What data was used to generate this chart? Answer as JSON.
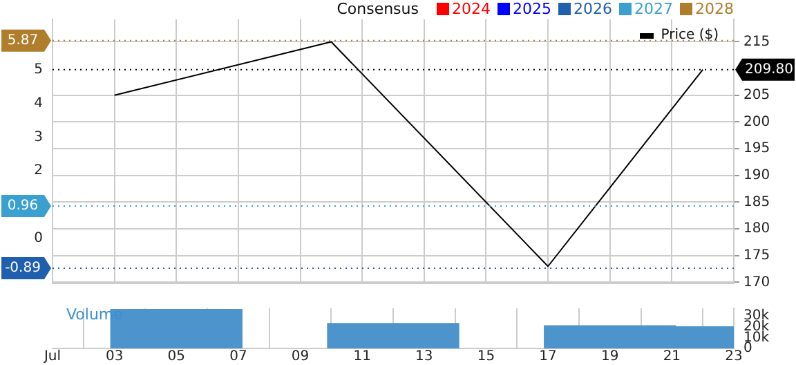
{
  "chart_data": [
    {
      "type": "line",
      "legend_title": "Consensus",
      "legend": "top",
      "grid": true,
      "tick_labels": "y",
      "x": [
        "--07-03",
        "--07-10",
        "--07-17",
        "--07-22"
      ],
      "xlim": [
        "--07-01",
        "--07-23"
      ],
      "xticks": [
        {
          "value": "--07-01",
          "label": null
        },
        {
          "value": "--07-03",
          "label": null
        },
        {
          "value": "--07-05",
          "label": null
        },
        {
          "value": "--07-07",
          "label": null
        },
        {
          "value": "--07-09",
          "label": null
        },
        {
          "value": "--07-11",
          "label": null
        },
        {
          "value": "--07-13",
          "label": null
        },
        {
          "value": "--07-15",
          "label": null
        },
        {
          "value": "--07-17",
          "label": null
        },
        {
          "value": "--07-19",
          "label": null
        },
        {
          "value": "--07-21",
          "label": null
        },
        {
          "value": "--07-23",
          "label": null
        }
      ],
      "ylim": [
        -1.34,
        6.5
      ],
      "yticks": [
        0,
        2,
        3,
        4,
        5
      ],
      "y2lim": [
        169.8,
        219.2
      ],
      "y2ticks": [
        170,
        175,
        180,
        185,
        190,
        195,
        200,
        205,
        215
      ],
      "series": [
        {
          "name": "2024",
          "color": "#ff0000",
          "values": [
            null,
            null,
            null,
            null
          ]
        },
        {
          "name": "2025",
          "color": "#0000ff",
          "values": [
            null,
            null,
            null,
            null
          ]
        },
        {
          "name": "2026",
          "color": "#1f5fae",
          "values": [
            null,
            null,
            null,
            null
          ]
        },
        {
          "name": "2027",
          "color": "#3aa0d0",
          "values": [
            null,
            null,
            null,
            null
          ]
        },
        {
          "name": "2028",
          "color": "#b07d2b",
          "values": [
            null,
            null,
            null,
            null
          ]
        },
        {
          "name": "Price ($)",
          "color": "#000000",
          "axis": "y2",
          "values": [
            205,
            215,
            173,
            209.8
          ]
        }
      ],
      "ref_lines": [
        {
          "axis": "y",
          "value": 5.87,
          "label": "5.87",
          "color": "#b07d2b",
          "line_style": "dotted"
        },
        {
          "axis": "y",
          "value": 0.96,
          "label": "0.96",
          "color": "#3aa0d0",
          "line_style": "dotted"
        },
        {
          "axis": "y",
          "value": -0.89,
          "label": "-0.89",
          "color": "#1f5fae",
          "line_style": "dotted"
        },
        {
          "axis": "y2",
          "value": 209.8,
          "label": "209.80",
          "color": "#000000",
          "line_style": "dotted"
        }
      ]
    },
    {
      "type": "bar",
      "title": "Volume",
      "grid": "x",
      "x": [
        "--07-05",
        "--07-12",
        "--07-19",
        "--07-23"
      ],
      "xlim": [
        "--07-01",
        "--07-23"
      ],
      "xticks": [
        {
          "value": "--07-01",
          "label": "Jul"
        },
        {
          "value": "--07-03",
          "label": "03"
        },
        {
          "value": "--07-05",
          "label": "05"
        },
        {
          "value": "--07-07",
          "label": "07"
        },
        {
          "value": "--07-09",
          "label": "09"
        },
        {
          "value": "--07-11",
          "label": "11"
        },
        {
          "value": "--07-13",
          "label": "13"
        },
        {
          "value": "--07-15",
          "label": "15"
        },
        {
          "value": "--07-17",
          "label": "17"
        },
        {
          "value": "--07-19",
          "label": "19"
        },
        {
          "value": "--07-21",
          "label": "21"
        },
        {
          "value": "--07-23",
          "label": "23"
        }
      ],
      "y2lim": [
        0,
        37000
      ],
      "y2ticks": [
        {
          "value": 0,
          "label": "0"
        },
        {
          "value": 10000,
          "label": "10k"
        },
        {
          "value": 20000,
          "label": "20k"
        },
        {
          "value": 30000,
          "label": "30k"
        }
      ],
      "series": [
        {
          "color": "#4d94cc",
          "axis": "y2",
          "values": [
            36000,
            23000,
            21000,
            20000
          ]
        }
      ]
    }
  ]
}
